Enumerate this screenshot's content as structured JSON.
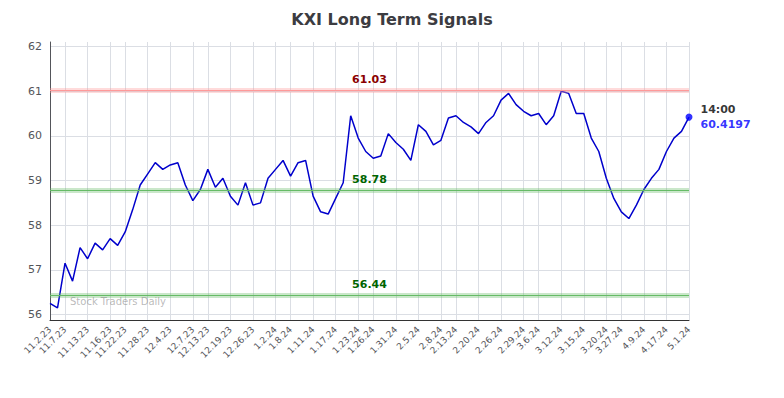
{
  "chart_data": {
    "type": "line",
    "title": "KXI Long Term Signals",
    "categories": [
      "11.2.23",
      null,
      "11.7.23",
      null,
      null,
      "11.13.23",
      null,
      null,
      "11.16.23",
      null,
      "11.22.23",
      null,
      null,
      "11.28.23",
      null,
      null,
      "12.4.23",
      null,
      null,
      "12.7.23",
      null,
      "12.13.23",
      null,
      null,
      "12.19.23",
      null,
      null,
      "12.26.23",
      null,
      null,
      "1.2.24",
      null,
      "1.8.24",
      null,
      null,
      "1.11.24",
      null,
      null,
      "1.17.24",
      null,
      null,
      "1.23.24",
      null,
      "1.26.24",
      null,
      null,
      "1.31.24",
      null,
      null,
      "2.5.24",
      null,
      null,
      "2.8.24",
      null,
      "2.13.24",
      null,
      null,
      "2.20.24",
      null,
      null,
      "2.26.24",
      null,
      null,
      "2.29.24",
      null,
      "3.6.24",
      null,
      null,
      "3.12.24",
      null,
      null,
      "3.15.24",
      null,
      null,
      "3.20.24",
      null,
      "3.27.24",
      null,
      null,
      "4.9.24",
      null,
      null,
      "4.17.24",
      null,
      null,
      "5.1.24"
    ],
    "values": [
      56.25,
      56.15,
      57.15,
      56.75,
      57.5,
      57.25,
      57.6,
      57.45,
      57.7,
      57.55,
      57.85,
      58.35,
      58.9,
      59.15,
      59.4,
      59.25,
      59.35,
      59.4,
      58.9,
      58.55,
      58.8,
      59.25,
      58.85,
      59.05,
      58.65,
      58.45,
      58.95,
      58.45,
      58.5,
      59.05,
      59.25,
      59.45,
      59.1,
      59.4,
      59.45,
      58.65,
      58.3,
      58.25,
      58.6,
      58.95,
      60.45,
      59.95,
      59.65,
      59.5,
      59.55,
      60.05,
      59.85,
      59.7,
      59.45,
      60.25,
      60.1,
      59.8,
      59.9,
      60.4,
      60.45,
      60.3,
      60.2,
      60.05,
      60.3,
      60.45,
      60.8,
      60.95,
      60.7,
      60.55,
      60.45,
      60.5,
      60.25,
      60.45,
      61.0,
      60.95,
      60.5,
      60.5,
      59.95,
      59.65,
      59.05,
      58.6,
      58.3,
      58.15,
      58.45,
      58.8,
      59.05,
      59.25,
      59.65,
      59.95,
      60.1,
      60.4197
    ],
    "color": "#0000cc",
    "last_point": {
      "color": "#0000ff",
      "marker": "circle"
    },
    "hlines": [
      {
        "value": 61.03,
        "label": "61.03",
        "color": "#ff9999",
        "label_color": "darkred"
      },
      {
        "value": 58.78,
        "label": "58.78",
        "color": "#66bb66",
        "label_color": "darkgreen"
      },
      {
        "value": 56.44,
        "label": "56.44",
        "color": "#66bb66",
        "label_color": "darkgreen"
      }
    ],
    "annotations": [
      {
        "text": "14:00",
        "color": "black"
      },
      {
        "text": "60.4197",
        "color": "blue"
      }
    ],
    "watermark": "Stock Traders Daily",
    "ylim": [
      55.88,
      62.1
    ],
    "yticks": [
      56,
      57,
      58,
      59,
      60,
      61,
      62
    ],
    "grid": true
  }
}
